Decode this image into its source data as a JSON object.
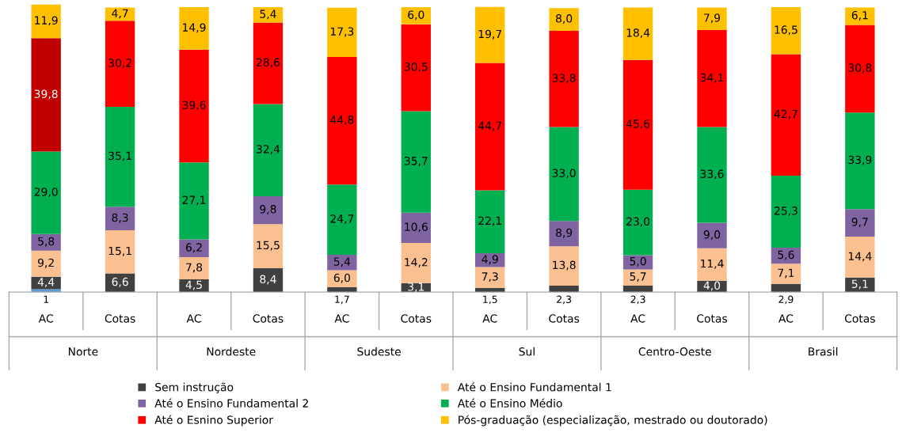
{
  "chart_data": {
    "type": "bar",
    "stacked": true,
    "legend": "bottom",
    "categories": [
      "AC",
      "Cotas",
      "AC",
      "Cotas",
      "AC",
      "Cotas",
      "AC",
      "Cotas",
      "AC",
      "Cotas",
      "AC",
      "Cotas"
    ],
    "annotations": [
      "Norte",
      "Nordeste",
      "Sudeste",
      "Sul",
      "Centro-Oeste",
      "Brasil"
    ],
    "series": [
      {
        "color": "#5b9bd5",
        "values": [
          1,
          null,
          null,
          null,
          null,
          null,
          null,
          null,
          null,
          null,
          null,
          null
        ],
        "value_labels": [
          "1",
          null,
          null,
          null,
          null,
          null,
          null,
          null,
          null,
          null,
          null,
          null
        ]
      },
      {
        "name": "Sem instrução",
        "color": "#404040",
        "values": [
          4.4,
          6.6,
          4.5,
          8.4,
          1.7,
          3.1,
          1.5,
          2.3,
          2.3,
          4.0,
          2.9,
          5.1
        ],
        "value_labels": [
          "4,4",
          "6,6",
          "4,5",
          "8,4",
          "1,7",
          "3,1",
          "1,5",
          "2,3",
          "2,3",
          "4,0",
          "2,9",
          "5,1"
        ]
      },
      {
        "name": "Até o Ensino Fundamental 1",
        "color": "#fac090",
        "values": [
          9.2,
          15.1,
          7.8,
          15.5,
          6.0,
          14.2,
          7.3,
          13.8,
          5.7,
          11.4,
          7.1,
          14.4
        ],
        "value_labels": [
          "9,2",
          "15,1",
          "7,8",
          "15,5",
          "6,0",
          "14,2",
          "7,3",
          "13,8",
          "5,7",
          "11,4",
          "7,1",
          "14,4"
        ]
      },
      {
        "name": "Até o Ensino Fundamental 2",
        "color": "#8064a2",
        "values": [
          5.8,
          8.3,
          6.2,
          9.8,
          5.4,
          10.6,
          4.9,
          8.9,
          5.0,
          9.0,
          5.6,
          9.7
        ],
        "value_labels": [
          "5,8",
          "8,3",
          "6,2",
          "9,8",
          "5,4",
          "10,6",
          "4,9",
          "8,9",
          "5,0",
          "9,0",
          "5,6",
          "9,7"
        ]
      },
      {
        "name": "Até o Ensino Médio",
        "color": "#00b050",
        "values": [
          29.0,
          35.1,
          27.1,
          32.4,
          24.7,
          35.7,
          22.1,
          33.0,
          23.0,
          33.6,
          25.3,
          33.9
        ],
        "value_labels": [
          "29,0",
          "35,1",
          "27,1",
          "32,4",
          "24,7",
          "35,7",
          "22,1",
          "33,0",
          "23,0",
          "33,6",
          "25,3",
          "33,9"
        ]
      },
      {
        "name": "Até o Esnino Superior",
        "color": "#ff0000",
        "colors": [
          "#c00000",
          "#ff0000",
          "#ff0000",
          "#ff0000",
          "#ff0000",
          "#ff0000",
          "#ff0000",
          "#ff0000",
          "#ff0000",
          "#ff0000",
          "#ff0000",
          "#ff0000"
        ],
        "values": [
          39.8,
          30.2,
          39.6,
          28.6,
          44.8,
          30.5,
          44.7,
          33.8,
          45.6,
          34.1,
          42.7,
          30.8
        ],
        "value_labels": [
          "39,8",
          "30,2",
          "39,6",
          "28,6",
          "44,8",
          "30,5",
          "44,7",
          "33,8",
          "45,6",
          "34,1",
          "42,7",
          "30,8"
        ]
      },
      {
        "name": "Pós-graduação (especialização, mestrado ou doutorado)",
        "color": "#ffc000",
        "values": [
          11.9,
          4.7,
          14.9,
          5.4,
          17.3,
          6.0,
          19.7,
          8.0,
          18.4,
          7.9,
          16.5,
          6.1
        ],
        "value_labels": [
          "11,9",
          "4,7",
          "14,9",
          "5,4",
          "17,3",
          "6,0",
          "19,7",
          "8,0",
          "18,4",
          "7,9",
          "16,5",
          "6,1"
        ]
      }
    ]
  }
}
